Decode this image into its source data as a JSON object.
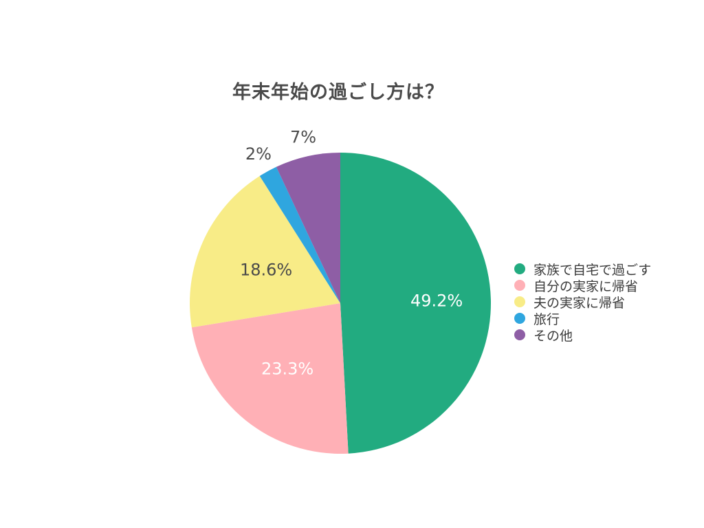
{
  "chart_data": {
    "type": "pie",
    "title": "年末年始の過ごし方は？",
    "legend_position": "right",
    "slices": [
      {
        "label": "家族で自宅で過ごす",
        "value": 49.2,
        "display": "49.2%",
        "color": "#22ab80",
        "label_color": "#ffffff"
      },
      {
        "label": "自分の実家に帰省",
        "value": 23.3,
        "display": "23.3%",
        "color": "#ffb0b6",
        "label_color": "#ffffff"
      },
      {
        "label": "夫の実家に帰省",
        "value": 18.6,
        "display": "18.6%",
        "color": "#f8ec87",
        "label_color": "#4a4a4a"
      },
      {
        "label": "旅行",
        "value": 2,
        "display": "2%",
        "color": "#2fa6df",
        "label_color": "#4a4a4a"
      },
      {
        "label": "その他",
        "value": 7,
        "display": "7%",
        "color": "#8e5ea5",
        "label_color": "#4a4a4a"
      }
    ]
  }
}
